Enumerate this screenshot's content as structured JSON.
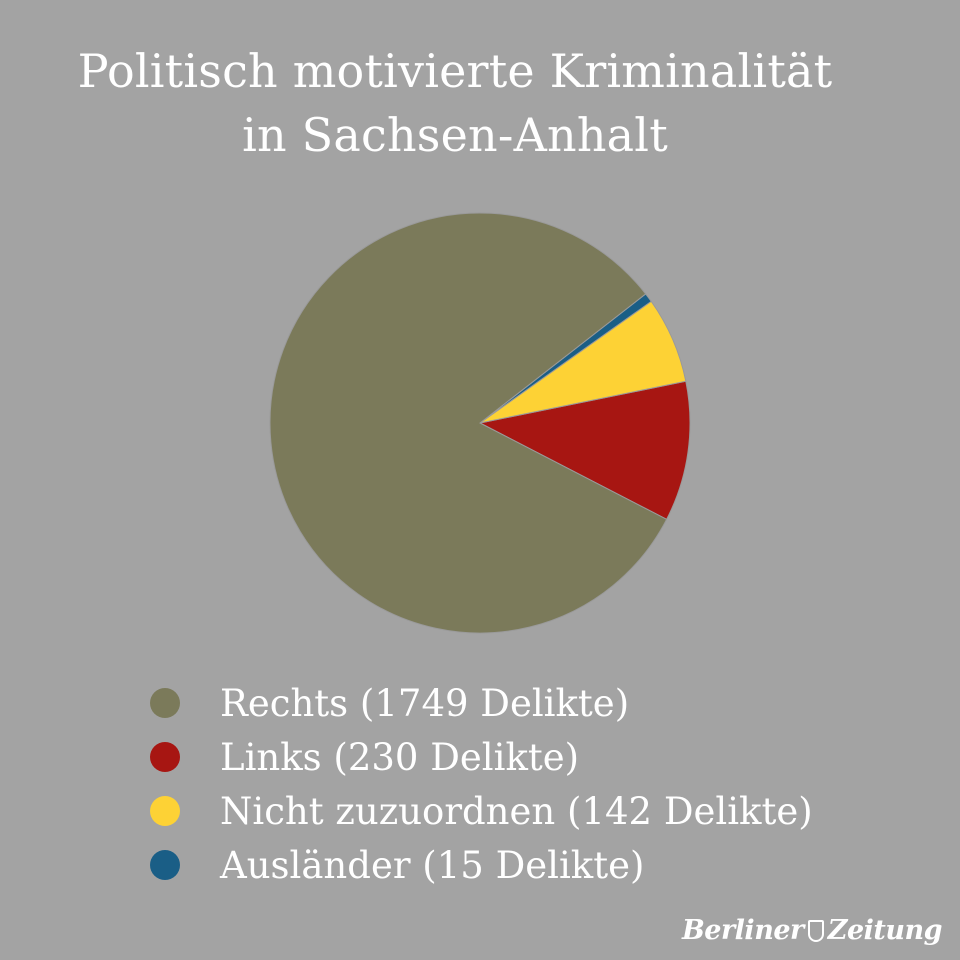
{
  "title": {
    "line1": "Politisch motivierte Kriminalität",
    "line2": "in Sachsen-Anhalt"
  },
  "chart_data": {
    "type": "pie",
    "title": "Politisch motivierte Kriminalität in Sachsen-Anhalt",
    "slices": [
      {
        "name": "Rechts",
        "value": 1749,
        "label": "Rechts (1749 Delikte)",
        "color": "#7b7a5a"
      },
      {
        "name": "Links",
        "value": 230,
        "label": "Links (230 Delikte)",
        "color": "#a71612"
      },
      {
        "name": "Nicht zuzuordnen",
        "value": 142,
        "label": "Nicht zuzuordnen (142 Delikte)",
        "color": "#fdd235"
      },
      {
        "name": "Ausländer",
        "value": 15,
        "label": "Ausländer (15 Delikte)",
        "color": "#1a5e86"
      }
    ],
    "legend_position": "bottom"
  },
  "logo": {
    "part1": "Berliner",
    "part2": "Zeitung"
  }
}
